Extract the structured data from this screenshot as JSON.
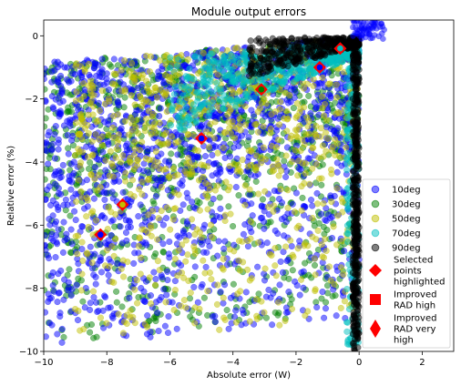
{
  "chart_data": {
    "type": "scatter",
    "title": "Module output errors",
    "xlabel": "Absolute error (W)",
    "ylabel": "Relative error (%)",
    "xlim": [
      -10,
      3
    ],
    "ylim": [
      -10,
      0.5
    ],
    "xticks": [
      -10,
      -8,
      -6,
      -4,
      -2,
      0,
      2
    ],
    "yticks": [
      -10,
      -8,
      -6,
      -4,
      -2,
      0
    ],
    "grid": false,
    "legend_position": "lower-right",
    "series": [
      {
        "name": "10deg",
        "color": "#0000ff",
        "marker": "circle"
      },
      {
        "name": "30deg",
        "color": "#008000",
        "marker": "circle"
      },
      {
        "name": "50deg",
        "color": "#bfbf00",
        "marker": "circle"
      },
      {
        "name": "70deg",
        "color": "#00bfbf",
        "marker": "circle"
      },
      {
        "name": "90deg",
        "color": "#000000",
        "marker": "circle"
      }
    ],
    "highlights": [
      {
        "name": "Selected points highlighted",
        "color": "#ff0000",
        "marker": "diamond"
      },
      {
        "name": "Improved RAD high",
        "color": "#ff0000",
        "marker": "square"
      },
      {
        "name": "Improved RAD very high",
        "color": "#ff0000",
        "marker": "thin-diamond"
      }
    ],
    "selected_points": [
      {
        "x": -8.2,
        "y": -6.3
      },
      {
        "x": -7.5,
        "y": -5.35
      },
      {
        "x": -5.0,
        "y": -3.25
      },
      {
        "x": -3.1,
        "y": -1.7
      },
      {
        "x": -1.25,
        "y": -1.0
      },
      {
        "x": -0.6,
        "y": -0.4
      }
    ]
  }
}
